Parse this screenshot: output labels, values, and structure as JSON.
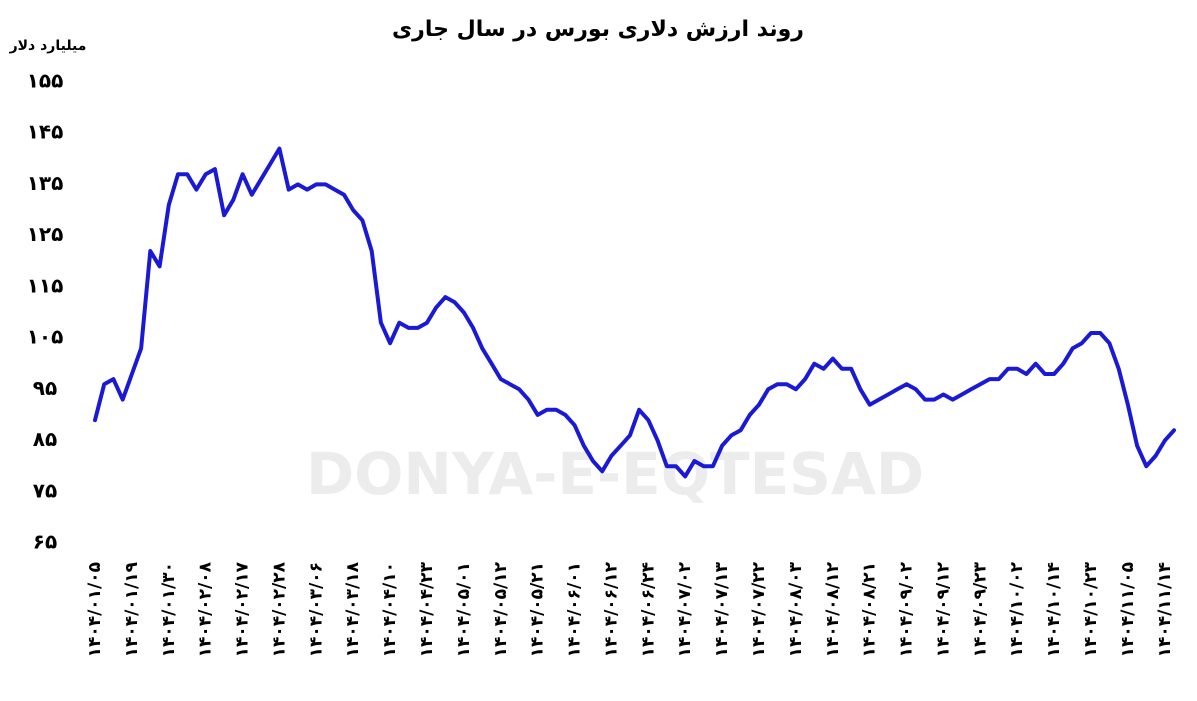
{
  "chart_data": {
    "type": "line",
    "title": "روند ارزش دلاری بورس در سال جاری",
    "y_label": "میلیارد دلار",
    "watermark": "DONYA-E-EQTESAD",
    "categories": [
      "۱۴۰۴/۰۱/۰۵",
      null,
      null,
      null,
      "۱۴۰۴/۰۱/۱۹",
      null,
      null,
      null,
      "۱۴۰۴/۰۱/۳۰",
      null,
      null,
      null,
      "۱۴۰۴/۰۲/۰۸",
      null,
      null,
      null,
      "۱۴۰۴/۰۲/۱۷",
      null,
      null,
      null,
      "۱۴۰۴/۰۲/۲۸",
      null,
      null,
      null,
      "۱۴۰۴/۰۳/۰۶",
      null,
      null,
      null,
      "۱۴۰۴/۰۳/۱۸",
      null,
      null,
      null,
      "۱۴۰۴/۰۴/۱۰",
      null,
      null,
      null,
      "۱۴۰۴/۰۴/۲۳",
      null,
      null,
      null,
      "۱۴۰۴/۰۵/۰۱",
      null,
      null,
      null,
      "۱۴۰۴/۰۵/۱۲",
      null,
      null,
      null,
      "۱۴۰۴/۰۵/۲۱",
      null,
      null,
      null,
      "۱۴۰۴/۰۶/۰۱",
      null,
      null,
      null,
      "۱۴۰۴/۰۶/۱۲",
      null,
      null,
      null,
      "۱۴۰۴/۰۶/۲۴",
      null,
      null,
      null,
      "۱۴۰۴/۰۷/۰۲",
      null,
      null,
      null,
      "۱۴۰۴/۰۷/۱۳",
      null,
      null,
      null,
      "۱۴۰۴/۰۷/۲۲",
      null,
      null,
      null,
      "۱۴۰۴/۰۸/۰۳",
      null,
      null,
      null,
      "۱۴۰۴/۰۸/۱۲",
      null,
      null,
      null,
      "۱۴۰۴/۰۸/۲۱",
      null,
      null,
      null,
      "۱۴۰۴/۰۹/۰۲",
      null,
      null,
      null,
      "۱۴۰۴/۰۹/۱۲",
      null,
      null,
      null,
      "۱۴۰۴/۰۹/۲۳",
      null,
      null,
      null,
      "۱۴۰۴/۱۰/۰۲",
      null,
      null,
      null,
      "۱۴۰۴/۱۰/۱۴",
      null,
      null,
      null,
      "۱۴۰۴/۱۰/۲۳",
      null,
      null,
      null,
      "۱۴۰۴/۱۱/۰۵",
      null,
      null,
      null,
      "۱۴۰۴/۱۱/۱۴",
      null
    ],
    "series": [
      {
        "color": "#1a1ad6",
        "values": [
          89,
          96,
          97,
          93,
          98,
          103,
          122,
          119,
          131,
          137,
          137,
          134,
          137,
          138,
          129,
          132,
          137,
          133,
          136,
          139,
          142,
          134,
          135,
          134,
          135,
          135,
          134,
          133,
          130,
          128,
          122,
          108,
          104,
          108,
          107,
          107,
          108,
          111,
          113,
          112,
          110,
          107,
          103,
          100,
          97,
          96,
          95,
          93,
          90,
          91,
          91,
          90,
          88,
          84,
          81,
          79,
          82,
          84,
          86,
          91,
          89,
          85,
          80,
          80,
          78,
          81,
          80,
          80,
          84,
          86,
          87,
          90,
          92,
          95,
          96,
          96,
          95,
          97,
          100,
          99,
          101,
          99,
          99,
          95,
          92,
          93,
          94,
          95,
          96,
          95,
          93,
          93,
          94,
          93,
          94,
          95,
          96,
          97,
          97,
          99,
          99,
          98,
          100,
          98,
          98,
          100,
          103,
          104,
          106,
          106,
          104,
          99,
          92,
          84,
          80,
          82,
          85,
          87
        ]
      }
    ],
    "ylim": [
      65,
      155
    ],
    "yticks": [
      {
        "value": 65,
        "label": "۶۵"
      },
      {
        "value": 75,
        "label": "۷۵"
      },
      {
        "value": 85,
        "label": "۸۵"
      },
      {
        "value": 95,
        "label": "۹۵"
      },
      {
        "value": 105,
        "label": "۱۰۵"
      },
      {
        "value": 115,
        "label": "۱۱۵"
      },
      {
        "value": 125,
        "label": "۱۲۵"
      },
      {
        "value": 135,
        "label": "۱۳۵"
      },
      {
        "value": 145,
        "label": "۱۴۵"
      },
      {
        "value": 155,
        "label": "۱۵۵"
      }
    ],
    "grid": false
  }
}
